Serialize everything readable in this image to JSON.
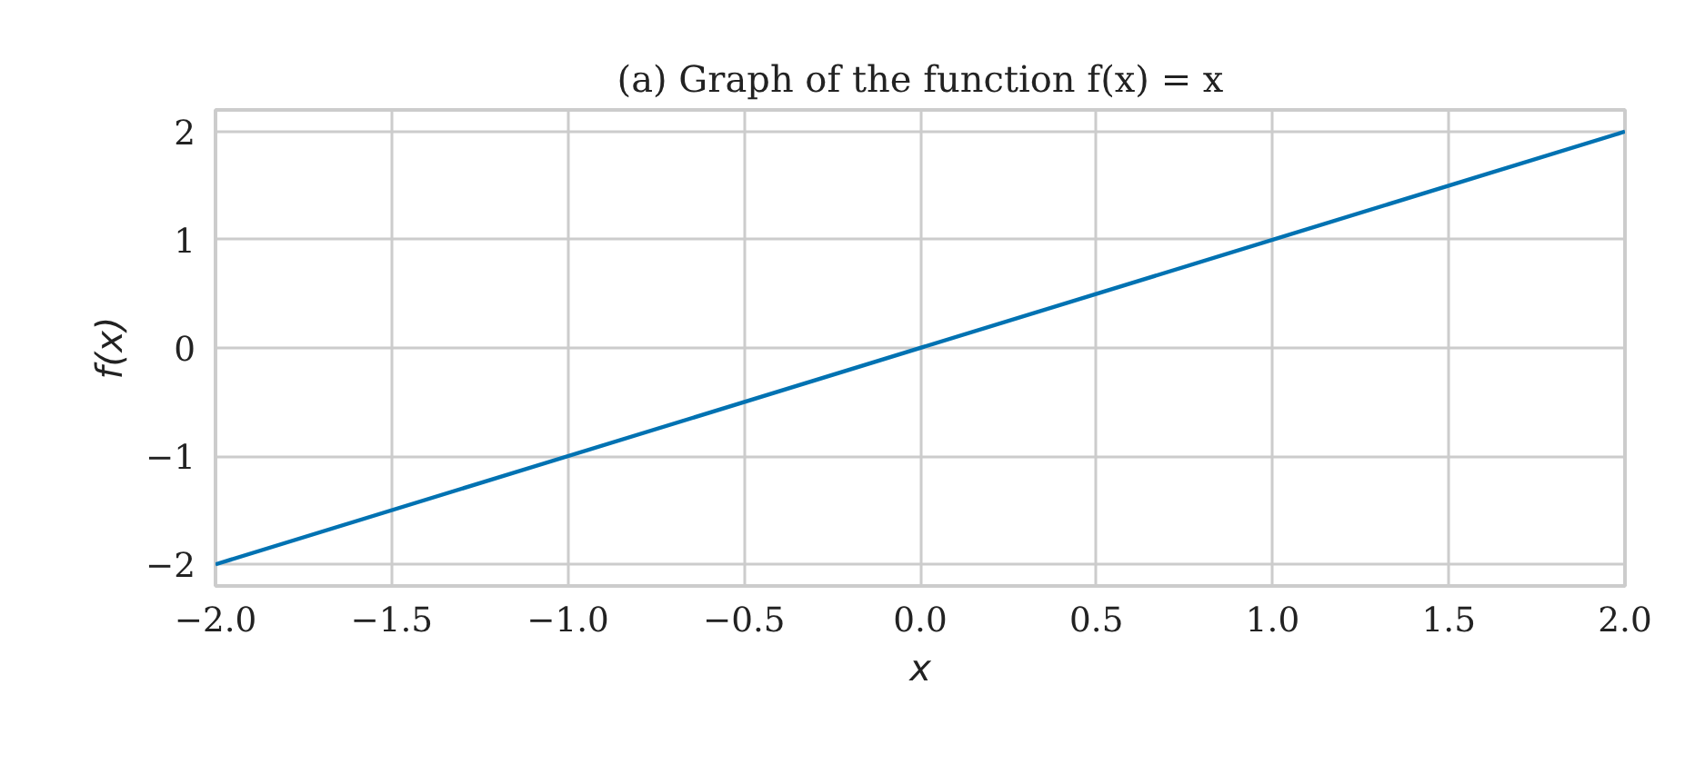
{
  "chart_data": {
    "type": "line",
    "title": "(a) Graph of the function f(x) = x",
    "xlabel": "x",
    "ylabel": "f(x)",
    "x": [
      -2,
      2
    ],
    "series": [
      {
        "color": "#0072b2",
        "values": [
          -2,
          2
        ]
      }
    ],
    "xlim": [
      -2,
      2
    ],
    "ylim": [
      -2.2,
      2.2
    ],
    "xticks": [
      {
        "value": -2,
        "label": "−2.0"
      },
      {
        "value": -1.5,
        "label": "−1.5"
      },
      {
        "value": -1,
        "label": "−1.0"
      },
      {
        "value": -0.5,
        "label": "−0.5"
      },
      {
        "value": 0,
        "label": "0.0"
      },
      {
        "value": 0.5,
        "label": "0.5"
      },
      {
        "value": 1,
        "label": "1.0"
      },
      {
        "value": 1.5,
        "label": "1.5"
      },
      {
        "value": 2,
        "label": "2.0"
      }
    ],
    "yticks": [
      {
        "value": -2,
        "label": "−2"
      },
      {
        "value": -1,
        "label": "−1"
      },
      {
        "value": 0,
        "label": "0"
      },
      {
        "value": 1,
        "label": "1"
      },
      {
        "value": 2,
        "label": "2"
      }
    ],
    "grid": true,
    "marker": "none",
    "line_style": "solid"
  }
}
